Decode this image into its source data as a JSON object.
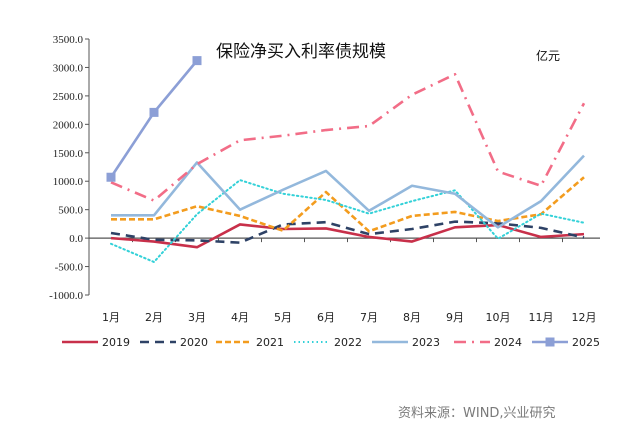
{
  "chart_data": {
    "type": "line",
    "title": "保险净买入利率债规模",
    "unit_label": "亿元",
    "source": "资料来源：WIND,兴业研究",
    "xlabel": "",
    "ylabel": "",
    "categories": [
      "1月",
      "2月",
      "3月",
      "4月",
      "5月",
      "6月",
      "7月",
      "8月",
      "9月",
      "10月",
      "11月",
      "12月"
    ],
    "ylim": [
      -1000,
      3500
    ],
    "yticks": [
      -1000,
      -500,
      0,
      500,
      1000,
      1500,
      2000,
      2500,
      3000,
      3500
    ],
    "ytick_labels": [
      "-1000.0",
      "-500.0",
      "0.0",
      "500.0",
      "1000.0",
      "1500.0",
      "2000.0",
      "2500.0",
      "3000.0",
      "3500.0"
    ],
    "grid": false,
    "legend_position": "bottom",
    "series": [
      {
        "name": "2019",
        "color": "#c8304a",
        "style": "solid",
        "values": [
          0,
          -60,
          -160,
          240,
          160,
          170,
          20,
          -60,
          190,
          230,
          20,
          70
        ]
      },
      {
        "name": "2020",
        "color": "#2e4266",
        "style": "dashed",
        "values": [
          90,
          -30,
          -40,
          -80,
          240,
          280,
          70,
          160,
          290,
          260,
          180,
          10
        ]
      },
      {
        "name": "2021",
        "color": "#f39c1e",
        "style": "short-dash",
        "values": [
          330,
          330,
          560,
          390,
          130,
          810,
          120,
          390,
          460,
          300,
          420,
          1070
        ]
      },
      {
        "name": "2022",
        "color": "#33d1d8",
        "style": "dotted",
        "values": [
          -100,
          -420,
          420,
          1020,
          780,
          670,
          430,
          650,
          840,
          -10,
          430,
          270
        ]
      },
      {
        "name": "2023",
        "color": "#93b8dc",
        "style": "solid",
        "values": [
          400,
          400,
          1330,
          500,
          850,
          1180,
          480,
          920,
          780,
          190,
          650,
          1450
        ]
      },
      {
        "name": "2024",
        "color": "#f26d87",
        "style": "dash-dot",
        "values": [
          980,
          660,
          1300,
          1720,
          1800,
          1900,
          1970,
          2520,
          2880,
          1170,
          920,
          2370
        ]
      },
      {
        "name": "2025",
        "color": "#8c9fd6",
        "style": "solid-marker",
        "values": [
          1070,
          2210,
          3120
        ]
      }
    ]
  }
}
